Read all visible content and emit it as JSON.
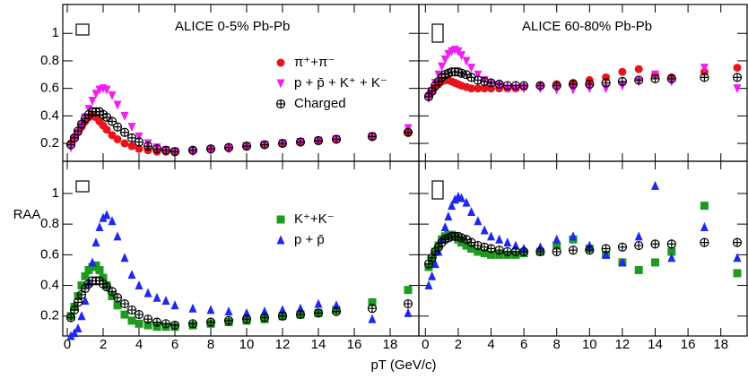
{
  "figure": {
    "xlabel": "pT (GeV/c)",
    "ylabel": "RAA"
  },
  "chart_data": [
    {
      "type": "scatter",
      "title": "ALICE 0-5% Pb-Pb",
      "legend": true,
      "xtick_labels": false,
      "ytick_labels": true,
      "xlim": [
        -0.25,
        19.6
      ],
      "ylim": [
        0.07,
        1.21
      ],
      "xticks": [
        0,
        2,
        4,
        6,
        8,
        10,
        12,
        14,
        16,
        18
      ],
      "yticks": [
        0.2,
        0.4,
        0.6,
        0.8,
        1
      ],
      "series": [
        {
          "name": "π⁺+π⁻",
          "color": "#e8141c",
          "marker": "circle",
          "x": [
            0.2,
            0.4,
            0.6,
            0.8,
            1.0,
            1.2,
            1.4,
            1.6,
            1.8,
            2.0,
            2.2,
            2.5,
            2.8,
            3.2,
            3.6,
            4.0,
            4.5,
            5,
            5.5,
            6,
            7,
            8,
            9,
            10,
            11,
            12,
            13,
            14,
            15,
            17,
            19
          ],
          "values": [
            0.2,
            0.24,
            0.28,
            0.32,
            0.36,
            0.39,
            0.4,
            0.39,
            0.36,
            0.33,
            0.3,
            0.26,
            0.23,
            0.2,
            0.18,
            0.16,
            0.15,
            0.14,
            0.14,
            0.14,
            0.15,
            0.16,
            0.17,
            0.18,
            0.19,
            0.2,
            0.21,
            0.22,
            0.23,
            0.25,
            0.28
          ]
        },
        {
          "name": "p + p̄ + K⁺ + K⁻",
          "color": "#f01ef0",
          "marker": "tri-down",
          "x": [
            0.2,
            0.4,
            0.6,
            0.8,
            1.0,
            1.2,
            1.4,
            1.6,
            1.8,
            2.0,
            2.2,
            2.5,
            2.8,
            3.2,
            3.6,
            4.0,
            4.5,
            5,
            5.5,
            6,
            7,
            8,
            9,
            10,
            11,
            12,
            13,
            14,
            15,
            17,
            19
          ],
          "values": [
            0.17,
            0.22,
            0.27,
            0.33,
            0.39,
            0.45,
            0.51,
            0.56,
            0.59,
            0.6,
            0.59,
            0.55,
            0.48,
            0.4,
            0.32,
            0.25,
            0.2,
            0.17,
            0.15,
            0.14,
            0.14,
            0.15,
            0.16,
            0.18,
            0.19,
            0.2,
            0.21,
            0.22,
            0.23,
            0.25,
            0.31
          ]
        },
        {
          "name": "Charged",
          "color": "#000000",
          "marker": "open-cross",
          "x": [
            0.2,
            0.4,
            0.6,
            0.8,
            1.0,
            1.2,
            1.4,
            1.6,
            1.8,
            2.0,
            2.2,
            2.5,
            2.8,
            3.2,
            3.6,
            4.0,
            4.5,
            5,
            5.5,
            6,
            7,
            8,
            9,
            10,
            11,
            12,
            13,
            14,
            15,
            17,
            19
          ],
          "values": [
            0.19,
            0.24,
            0.29,
            0.34,
            0.38,
            0.41,
            0.43,
            0.43,
            0.43,
            0.41,
            0.39,
            0.36,
            0.32,
            0.28,
            0.24,
            0.21,
            0.18,
            0.16,
            0.15,
            0.14,
            0.15,
            0.16,
            0.17,
            0.18,
            0.19,
            0.2,
            0.21,
            0.22,
            0.23,
            0.25,
            0.28
          ]
        }
      ]
    },
    {
      "type": "scatter",
      "title": "ALICE 60-80% Pb-Pb",
      "legend": false,
      "xtick_labels": false,
      "ytick_labels": false,
      "xlim": [
        -0.4,
        19.6
      ],
      "ylim": [
        0.07,
        1.21
      ],
      "xticks": [
        0,
        2,
        4,
        6,
        8,
        10,
        12,
        14,
        16,
        18
      ],
      "yticks": [
        0.2,
        0.4,
        0.6,
        0.8,
        1
      ],
      "series": [
        {
          "color": "#e8141c",
          "marker": "circle",
          "x": [
            0.2,
            0.4,
            0.6,
            0.8,
            1.0,
            1.2,
            1.4,
            1.6,
            1.8,
            2.0,
            2.2,
            2.5,
            2.8,
            3.2,
            3.6,
            4.0,
            4.5,
            5,
            5.5,
            6,
            7,
            8,
            9,
            10,
            11,
            12,
            13,
            14,
            15,
            17,
            19
          ],
          "values": [
            0.55,
            0.58,
            0.61,
            0.63,
            0.65,
            0.66,
            0.66,
            0.65,
            0.64,
            0.63,
            0.62,
            0.61,
            0.6,
            0.6,
            0.6,
            0.6,
            0.6,
            0.6,
            0.6,
            0.61,
            0.62,
            0.63,
            0.64,
            0.66,
            0.68,
            0.72,
            0.74,
            0.7,
            0.68,
            0.72,
            0.75
          ]
        },
        {
          "color": "#f01ef0",
          "marker": "tri-down",
          "x": [
            0.2,
            0.4,
            0.6,
            0.8,
            1.0,
            1.2,
            1.4,
            1.6,
            1.8,
            2.0,
            2.2,
            2.5,
            2.8,
            3.2,
            3.6,
            4.0,
            4.5,
            5,
            5.5,
            6,
            7,
            8,
            9,
            10,
            11,
            12,
            13,
            14,
            15,
            17,
            19
          ],
          "values": [
            0.53,
            0.58,
            0.64,
            0.7,
            0.76,
            0.81,
            0.85,
            0.87,
            0.88,
            0.87,
            0.84,
            0.8,
            0.75,
            0.7,
            0.66,
            0.63,
            0.62,
            0.6,
            0.6,
            0.6,
            0.6,
            0.59,
            0.59,
            0.6,
            0.6,
            0.62,
            0.65,
            0.7,
            0.65,
            0.75,
            0.6
          ]
        },
        {
          "color": "#000000",
          "marker": "open-cross",
          "x": [
            0.2,
            0.4,
            0.6,
            0.8,
            1.0,
            1.2,
            1.4,
            1.6,
            1.8,
            2.0,
            2.2,
            2.5,
            2.8,
            3.2,
            3.6,
            4.0,
            4.5,
            5,
            5.5,
            6,
            7,
            8,
            9,
            10,
            11,
            12,
            13,
            14,
            15,
            17,
            19
          ],
          "values": [
            0.54,
            0.58,
            0.62,
            0.65,
            0.68,
            0.7,
            0.71,
            0.72,
            0.72,
            0.72,
            0.71,
            0.7,
            0.68,
            0.66,
            0.65,
            0.64,
            0.63,
            0.62,
            0.62,
            0.62,
            0.62,
            0.62,
            0.63,
            0.63,
            0.64,
            0.65,
            0.66,
            0.67,
            0.67,
            0.68,
            0.68
          ]
        }
      ]
    },
    {
      "type": "scatter",
      "legend": true,
      "xtick_labels": true,
      "ytick_labels": true,
      "xlim": [
        -0.25,
        19.6
      ],
      "ylim": [
        0.07,
        1.21
      ],
      "xticks": [
        0,
        2,
        4,
        6,
        8,
        10,
        12,
        14,
        16,
        18
      ],
      "yticks": [
        0.2,
        0.4,
        0.6,
        0.8,
        1
      ],
      "series": [
        {
          "name": "K⁺+K⁻",
          "color": "#1e9a1e",
          "marker": "square",
          "x": [
            0.2,
            0.4,
            0.6,
            0.8,
            1.0,
            1.2,
            1.4,
            1.6,
            1.8,
            2.0,
            2.2,
            2.5,
            2.8,
            3.2,
            3.6,
            4.0,
            4.5,
            5,
            5.5,
            6,
            7,
            8,
            9,
            10,
            11,
            12,
            13,
            14,
            15,
            17,
            19
          ],
          "values": [
            0.2,
            0.26,
            0.33,
            0.4,
            0.46,
            0.5,
            0.52,
            0.53,
            0.5,
            0.45,
            0.4,
            0.33,
            0.27,
            0.21,
            0.17,
            0.15,
            0.14,
            0.13,
            0.13,
            0.13,
            0.14,
            0.15,
            0.16,
            0.17,
            0.18,
            0.2,
            0.21,
            0.22,
            0.24,
            0.29,
            0.37
          ]
        },
        {
          "name": "p + p̄",
          "color": "#1e28f0",
          "marker": "tri-up",
          "x": [
            0.2,
            0.4,
            0.6,
            0.8,
            1.0,
            1.2,
            1.4,
            1.6,
            1.8,
            2.0,
            2.2,
            2.5,
            2.8,
            3.2,
            3.6,
            4.0,
            4.5,
            5,
            5.5,
            6,
            7,
            8,
            9,
            10,
            11,
            12,
            13,
            14,
            15,
            17,
            19
          ],
          "values": [
            0.07,
            0.09,
            0.12,
            0.2,
            0.3,
            0.42,
            0.55,
            0.68,
            0.78,
            0.84,
            0.86,
            0.82,
            0.72,
            0.58,
            0.47,
            0.4,
            0.35,
            0.32,
            0.3,
            0.27,
            0.25,
            0.24,
            0.23,
            0.22,
            0.23,
            0.24,
            0.25,
            0.28,
            0.27,
            0.18,
            0.22
          ]
        },
        {
          "color": "#000000",
          "marker": "open-cross",
          "x": [
            0.2,
            0.4,
            0.6,
            0.8,
            1.0,
            1.2,
            1.4,
            1.6,
            1.8,
            2.0,
            2.2,
            2.5,
            2.8,
            3.2,
            3.6,
            4.0,
            4.5,
            5,
            5.5,
            6,
            7,
            8,
            9,
            10,
            11,
            12,
            13,
            14,
            15,
            17,
            19
          ],
          "values": [
            0.19,
            0.24,
            0.29,
            0.34,
            0.38,
            0.41,
            0.43,
            0.43,
            0.43,
            0.41,
            0.39,
            0.36,
            0.32,
            0.28,
            0.24,
            0.21,
            0.18,
            0.16,
            0.15,
            0.14,
            0.15,
            0.16,
            0.17,
            0.18,
            0.19,
            0.2,
            0.21,
            0.22,
            0.23,
            0.25,
            0.28
          ]
        }
      ]
    },
    {
      "type": "scatter",
      "legend": false,
      "xtick_labels": true,
      "ytick_labels": false,
      "xlim": [
        -0.4,
        19.6
      ],
      "ylim": [
        0.07,
        1.21
      ],
      "xticks": [
        0,
        2,
        4,
        6,
        8,
        10,
        12,
        14,
        16,
        18
      ],
      "yticks": [
        0.2,
        0.4,
        0.6,
        0.8,
        1
      ],
      "series": [
        {
          "color": "#1e9a1e",
          "marker": "square",
          "x": [
            0.2,
            0.4,
            0.6,
            0.8,
            1.0,
            1.2,
            1.4,
            1.6,
            1.8,
            2.0,
            2.2,
            2.5,
            2.8,
            3.2,
            3.6,
            4.0,
            4.5,
            5,
            5.5,
            6,
            7,
            8,
            9,
            10,
            11,
            12,
            13,
            14,
            15,
            17,
            19
          ],
          "values": [
            0.52,
            0.57,
            0.62,
            0.66,
            0.7,
            0.72,
            0.73,
            0.73,
            0.72,
            0.7,
            0.68,
            0.66,
            0.64,
            0.62,
            0.61,
            0.6,
            0.6,
            0.6,
            0.6,
            0.61,
            0.62,
            0.66,
            0.7,
            0.64,
            0.6,
            0.55,
            0.5,
            0.55,
            0.62,
            0.92,
            0.48
          ]
        },
        {
          "color": "#1e28f0",
          "marker": "tri-up",
          "x": [
            0.2,
            0.4,
            0.6,
            0.8,
            1.0,
            1.2,
            1.4,
            1.6,
            1.8,
            2.0,
            2.2,
            2.5,
            2.8,
            3.2,
            3.6,
            4.0,
            4.5,
            5,
            5.5,
            6,
            7,
            8,
            9,
            10,
            11,
            12,
            13,
            14,
            15,
            17,
            19
          ],
          "values": [
            0.4,
            0.46,
            0.54,
            0.62,
            0.7,
            0.78,
            0.85,
            0.92,
            0.96,
            0.98,
            0.97,
            0.94,
            0.88,
            0.82,
            0.76,
            0.72,
            0.7,
            0.68,
            0.66,
            0.64,
            0.65,
            0.7,
            0.72,
            0.66,
            0.6,
            0.55,
            0.72,
            1.05,
            0.58,
            0.78,
            0.58
          ]
        },
        {
          "color": "#000000",
          "marker": "open-cross",
          "x": [
            0.2,
            0.4,
            0.6,
            0.8,
            1.0,
            1.2,
            1.4,
            1.6,
            1.8,
            2.0,
            2.2,
            2.5,
            2.8,
            3.2,
            3.6,
            4.0,
            4.5,
            5,
            5.5,
            6,
            7,
            8,
            9,
            10,
            11,
            12,
            13,
            14,
            15,
            17,
            19
          ],
          "values": [
            0.54,
            0.58,
            0.62,
            0.65,
            0.68,
            0.7,
            0.71,
            0.72,
            0.72,
            0.72,
            0.71,
            0.7,
            0.68,
            0.66,
            0.65,
            0.64,
            0.63,
            0.62,
            0.62,
            0.62,
            0.62,
            0.62,
            0.63,
            0.63,
            0.64,
            0.65,
            0.66,
            0.67,
            0.67,
            0.68,
            0.68
          ]
        }
      ]
    }
  ]
}
